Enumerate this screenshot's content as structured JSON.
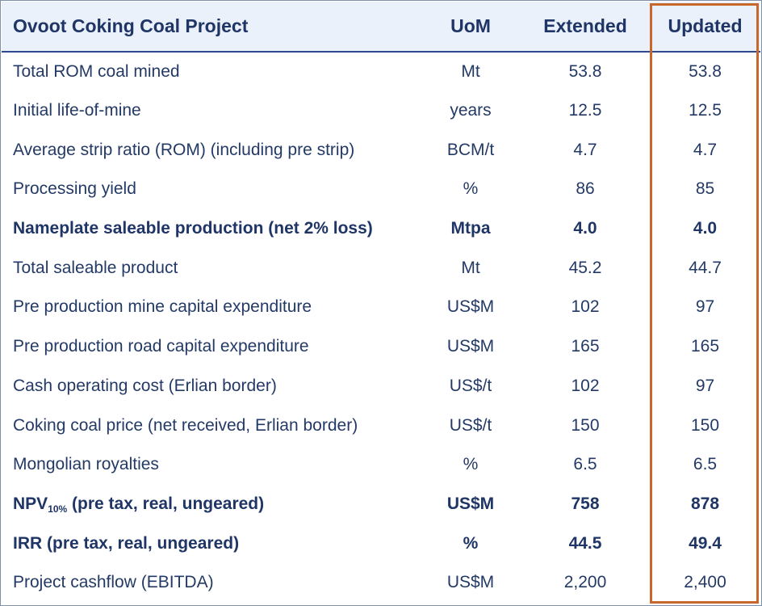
{
  "table": {
    "headers": {
      "label": "Ovoot Coking Coal Project",
      "uom": "UoM",
      "extended": "Extended",
      "updated": "Updated"
    },
    "rows": [
      {
        "label": "Total ROM coal mined",
        "uom": "Mt",
        "extended": "53.8",
        "updated": "53.8",
        "bold": false
      },
      {
        "label": "Initial life-of-mine",
        "uom": "years",
        "extended": "12.5",
        "updated": "12.5",
        "bold": false
      },
      {
        "label": "Average strip ratio (ROM) (including pre strip)",
        "uom": "BCM/t",
        "extended": "4.7",
        "updated": "4.7",
        "bold": false
      },
      {
        "label": "Processing yield",
        "uom": "%",
        "extended": "86",
        "updated": "85",
        "bold": false
      },
      {
        "label": "Nameplate saleable production (net 2% loss)",
        "uom": "Mtpa",
        "extended": "4.0",
        "updated": "4.0",
        "bold": true
      },
      {
        "label": "Total saleable product",
        "uom": "Mt",
        "extended": "45.2",
        "updated": "44.7",
        "bold": false
      },
      {
        "label": "Pre production mine capital expenditure",
        "uom": "US$M",
        "extended": "102",
        "updated": "97",
        "bold": false
      },
      {
        "label": "Pre production road capital expenditure",
        "uom": "US$M",
        "extended": "165",
        "updated": "165",
        "bold": false
      },
      {
        "label": "Cash operating cost (Erlian border)",
        "uom": "US$/t",
        "extended": "102",
        "updated": "97",
        "bold": false
      },
      {
        "label": "Coking coal price (net received, Erlian border)",
        "uom": "US$/t",
        "extended": "150",
        "updated": "150",
        "bold": false
      },
      {
        "label": "Mongolian royalties",
        "uom": "%",
        "extended": "6.5",
        "updated": "6.5",
        "bold": false
      },
      {
        "label": "NPV",
        "label_sub": "10%",
        "label_suffix": " (pre tax, real, ungeared)",
        "uom": "US$M",
        "extended": "758",
        "updated": "878",
        "bold": true
      },
      {
        "label": "IRR (pre tax, real, ungeared)",
        "uom": "%",
        "extended": "44.5",
        "updated": "49.4",
        "bold": true
      },
      {
        "label": "Project cashflow (EBITDA)",
        "uom": "US$M",
        "extended": "2,200",
        "updated": "2,400",
        "bold": false
      }
    ]
  },
  "colors": {
    "header_background": "#eaf1fb",
    "text": "#1f3566",
    "highlight_border": "#c8672c"
  }
}
